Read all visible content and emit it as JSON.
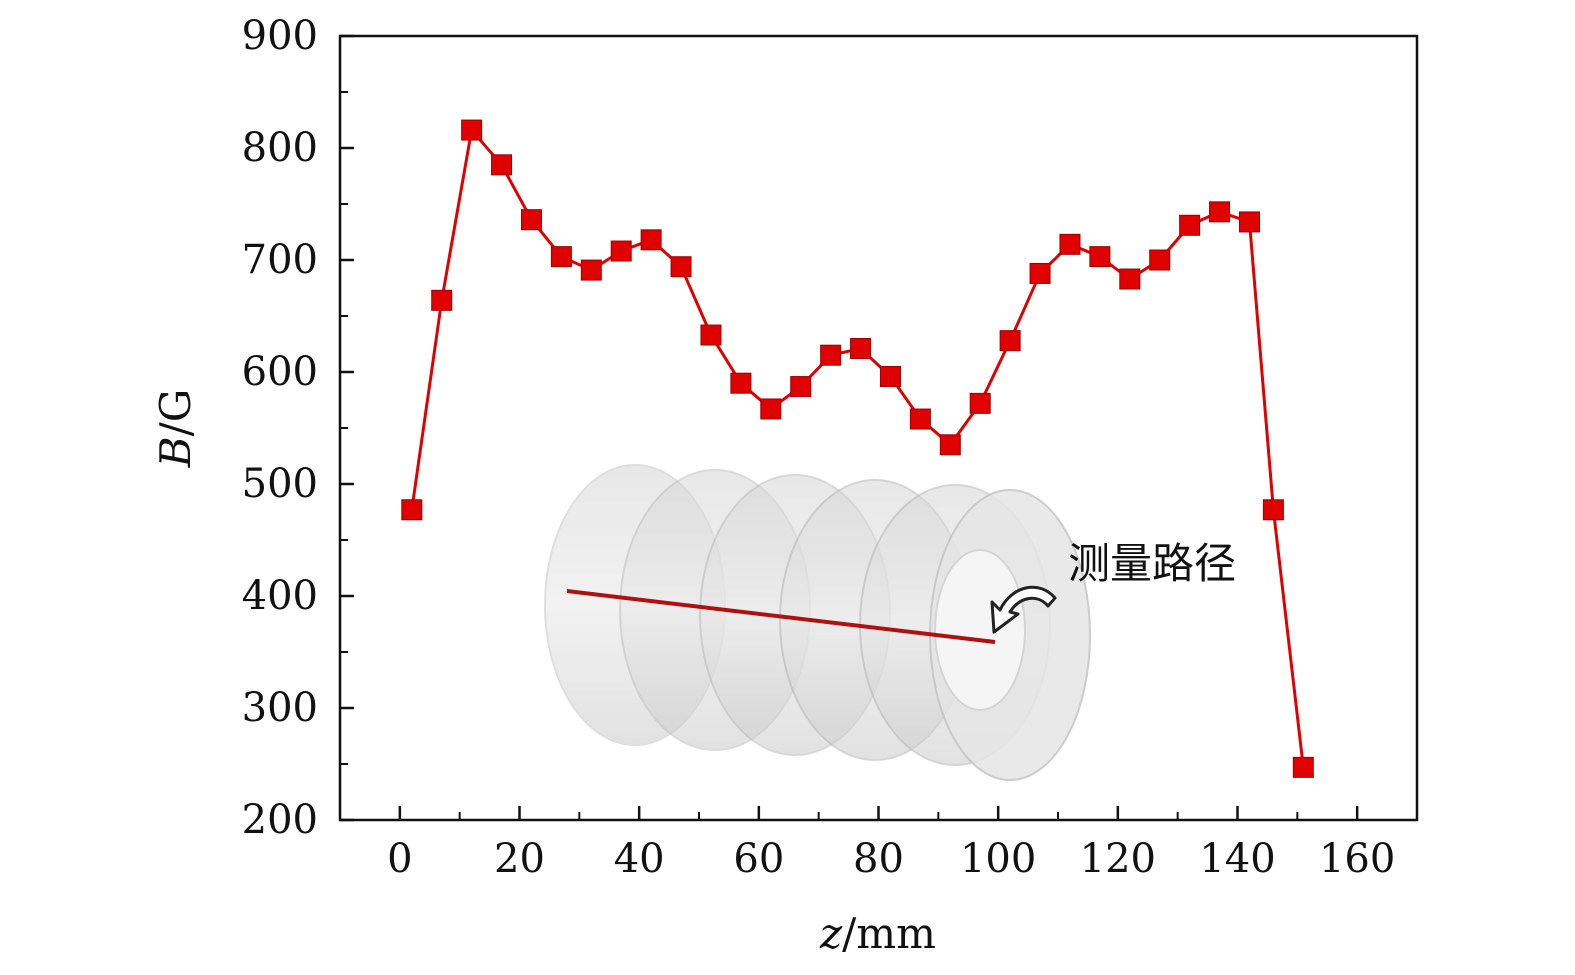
{
  "chart_data": {
    "type": "line",
    "title": "",
    "xlabel": "z/mm",
    "ylabel": "B/G",
    "xlim": [
      -10,
      170
    ],
    "ylim": [
      200,
      900
    ],
    "xticks": [
      0,
      20,
      40,
      60,
      80,
      100,
      120,
      140,
      160
    ],
    "yticks": [
      200,
      300,
      400,
      500,
      600,
      700,
      800,
      900
    ],
    "grid": false,
    "legend": "none",
    "series": [
      {
        "color": "#e00000",
        "marker": "square",
        "x": [
          2,
          7,
          12,
          17,
          22,
          27,
          32,
          37,
          42,
          47,
          52,
          57,
          62,
          67,
          72,
          77,
          82,
          87,
          92,
          97,
          102,
          107,
          112,
          117,
          122,
          127,
          132,
          137,
          142,
          146,
          151
        ],
        "y": [
          477,
          664,
          816,
          785,
          736,
          703,
          691,
          708,
          718,
          694,
          633,
          590,
          567,
          587,
          615,
          621,
          596,
          558,
          535,
          572,
          628,
          688,
          714,
          703,
          683,
          700,
          731,
          743,
          734,
          477,
          247
        ]
      }
    ],
    "annotations": [
      {
        "text": "测量路径",
        "inset": "solenoid-coil-illustration",
        "path_color": "#b01010"
      }
    ]
  }
}
